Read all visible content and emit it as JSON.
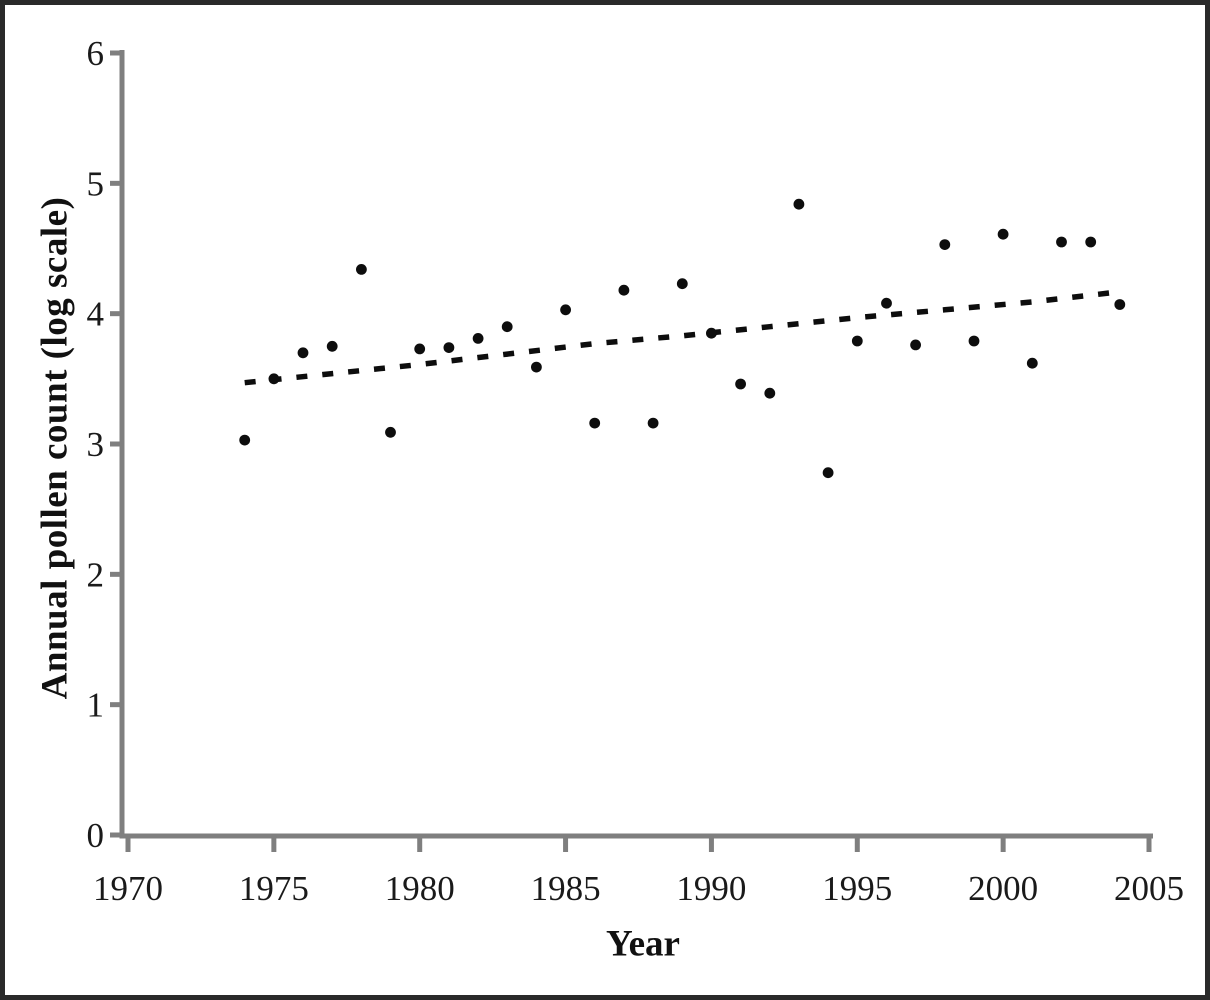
{
  "figure": {
    "background": "#ffffff",
    "frame_color": "#2a2a2a"
  },
  "chart_data": {
    "type": "scatter",
    "title": "",
    "xlabel": "Year",
    "ylabel": "Annual pollen count (log scale)",
    "xlim": [
      1970,
      2005
    ],
    "ylim": [
      0,
      6
    ],
    "x_ticks": [
      "1970",
      "1975",
      "1980",
      "1985",
      "1990",
      "1995",
      "2000",
      "2005"
    ],
    "y_ticks": [
      "0",
      "1",
      "2",
      "3",
      "4",
      "5",
      "6"
    ],
    "grid": false,
    "legend_position": "none",
    "axis_color": "#7f7f7f",
    "marker_color": "#0d0d0d",
    "trend_color": "#0d0d0d",
    "series": [
      {
        "name": "annual-pollen-count",
        "marker": "filled-circle",
        "points": [
          [
            1974,
            3.03
          ],
          [
            1975,
            3.5
          ],
          [
            1976,
            3.7
          ],
          [
            1977,
            3.75
          ],
          [
            1978,
            4.34
          ],
          [
            1979,
            3.09
          ],
          [
            1980,
            3.73
          ],
          [
            1981,
            3.74
          ],
          [
            1982,
            3.81
          ],
          [
            1983,
            3.9
          ],
          [
            1984,
            3.59
          ],
          [
            1985,
            4.03
          ],
          [
            1986,
            3.16
          ],
          [
            1987,
            4.18
          ],
          [
            1988,
            3.16
          ],
          [
            1989,
            4.23
          ],
          [
            1990,
            3.85
          ],
          [
            1991,
            3.46
          ],
          [
            1992,
            3.39
          ],
          [
            1993,
            4.84
          ],
          [
            1994,
            2.78
          ],
          [
            1995,
            3.79
          ],
          [
            1996,
            4.08
          ],
          [
            1997,
            3.76
          ],
          [
            1998,
            4.53
          ],
          [
            1999,
            3.79
          ],
          [
            2000,
            4.61
          ],
          [
            2001,
            3.62
          ],
          [
            2002,
            4.55
          ],
          [
            2003,
            4.55
          ],
          [
            2004,
            4.07
          ]
        ]
      },
      {
        "name": "trend-line",
        "style": "dashed",
        "points": [
          [
            1974.0,
            3.47
          ],
          [
            1977,
            3.54
          ],
          [
            1980,
            3.61
          ],
          [
            1983,
            3.69
          ],
          [
            1986,
            3.77
          ],
          [
            1989,
            3.83
          ],
          [
            1992,
            3.9
          ],
          [
            1995,
            3.97
          ],
          [
            1998,
            4.03
          ],
          [
            2001,
            4.09
          ],
          [
            2003.7,
            4.16
          ]
        ]
      }
    ]
  }
}
